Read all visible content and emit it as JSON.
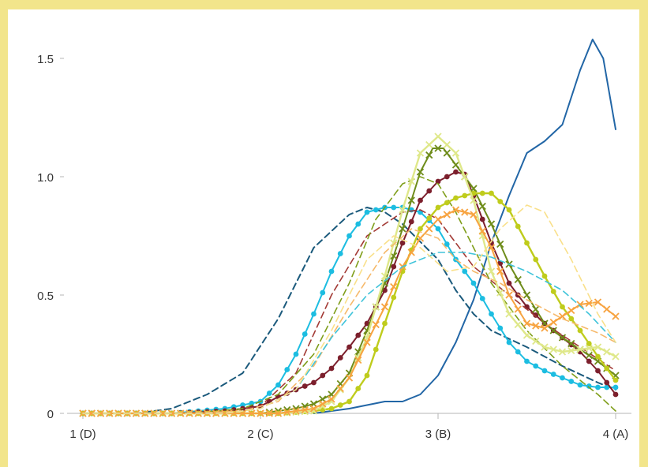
{
  "chart_data": {
    "type": "line",
    "x_ticks": [
      1,
      2,
      3,
      4
    ],
    "x_tick_labels": [
      "1 (D)",
      "2 (C)",
      "3 (B)",
      "4 (A)"
    ],
    "y_ticks": [
      0,
      0.5,
      1.0,
      1.5
    ],
    "y_tick_labels": [
      "0",
      "0.5",
      "1.0",
      "1.5"
    ],
    "xlim": [
      1,
      4
    ],
    "ylim": [
      0,
      1.6
    ],
    "grid": false,
    "legend": "none",
    "series": [
      {
        "color": "#2266a6",
        "style": "solid",
        "marker": "none",
        "width": 2,
        "points": [
          [
            2.3,
            0
          ],
          [
            2.5,
            0.02
          ],
          [
            2.7,
            0.05
          ],
          [
            2.8,
            0.05
          ],
          [
            2.9,
            0.08
          ],
          [
            3.0,
            0.16
          ],
          [
            3.1,
            0.3
          ],
          [
            3.2,
            0.48
          ],
          [
            3.3,
            0.72
          ],
          [
            3.4,
            0.92
          ],
          [
            3.5,
            1.1
          ],
          [
            3.6,
            1.15
          ],
          [
            3.7,
            1.22
          ],
          [
            3.8,
            1.45
          ],
          [
            3.87,
            1.58
          ],
          [
            3.93,
            1.5
          ],
          [
            4.0,
            1.2
          ]
        ]
      },
      {
        "color": "#1b5a7c",
        "style": "dashed",
        "marker": "none",
        "width": 2,
        "points": [
          [
            1,
            0
          ],
          [
            1.3,
            0
          ],
          [
            1.5,
            0.02
          ],
          [
            1.7,
            0.08
          ],
          [
            1.9,
            0.17
          ],
          [
            2.1,
            0.4
          ],
          [
            2.3,
            0.7
          ],
          [
            2.5,
            0.84
          ],
          [
            2.6,
            0.87
          ],
          [
            2.7,
            0.85
          ],
          [
            2.8,
            0.8
          ],
          [
            3.0,
            0.65
          ],
          [
            3.1,
            0.52
          ],
          [
            3.2,
            0.42
          ],
          [
            3.3,
            0.35
          ],
          [
            3.5,
            0.28
          ],
          [
            3.7,
            0.2
          ],
          [
            3.9,
            0.13
          ],
          [
            4.0,
            0.1
          ]
        ]
      },
      {
        "color": "#1cbde1",
        "style": "solid",
        "marker": "dot",
        "width": 2,
        "points": [
          [
            1,
            0
          ],
          [
            1.5,
            0
          ],
          [
            1.8,
            0.02
          ],
          [
            2.0,
            0.05
          ],
          [
            2.1,
            0.12
          ],
          [
            2.2,
            0.25
          ],
          [
            2.3,
            0.42
          ],
          [
            2.4,
            0.6
          ],
          [
            2.5,
            0.75
          ],
          [
            2.6,
            0.85
          ],
          [
            2.7,
            0.87
          ],
          [
            2.8,
            0.87
          ],
          [
            2.9,
            0.85
          ],
          [
            3.0,
            0.78
          ],
          [
            3.1,
            0.65
          ],
          [
            3.2,
            0.55
          ],
          [
            3.3,
            0.42
          ],
          [
            3.4,
            0.3
          ],
          [
            3.5,
            0.22
          ],
          [
            3.6,
            0.18
          ],
          [
            3.7,
            0.15
          ],
          [
            3.8,
            0.12
          ],
          [
            3.9,
            0.11
          ],
          [
            4.0,
            0.11
          ]
        ]
      },
      {
        "color": "#7c1f2c",
        "style": "solid",
        "marker": "dot",
        "width": 2,
        "points": [
          [
            1,
            0
          ],
          [
            1.5,
            0
          ],
          [
            1.8,
            0.01
          ],
          [
            2.0,
            0.03
          ],
          [
            2.1,
            0.07
          ],
          [
            2.2,
            0.1
          ],
          [
            2.3,
            0.13
          ],
          [
            2.4,
            0.19
          ],
          [
            2.5,
            0.28
          ],
          [
            2.6,
            0.38
          ],
          [
            2.7,
            0.52
          ],
          [
            2.8,
            0.72
          ],
          [
            2.9,
            0.9
          ],
          [
            3.0,
            0.98
          ],
          [
            3.1,
            1.02
          ],
          [
            3.15,
            1.01
          ],
          [
            3.2,
            0.92
          ],
          [
            3.3,
            0.72
          ],
          [
            3.4,
            0.55
          ],
          [
            3.5,
            0.45
          ],
          [
            3.6,
            0.38
          ],
          [
            3.7,
            0.32
          ],
          [
            3.8,
            0.26
          ],
          [
            3.9,
            0.18
          ],
          [
            4.0,
            0.08
          ]
        ]
      },
      {
        "color": "#a33a35",
        "style": "dashed",
        "marker": "none",
        "width": 1.6,
        "points": [
          [
            1,
            0
          ],
          [
            1.5,
            0
          ],
          [
            1.8,
            0.01
          ],
          [
            2.0,
            0.03
          ],
          [
            2.2,
            0.17
          ],
          [
            2.4,
            0.5
          ],
          [
            2.6,
            0.75
          ],
          [
            2.8,
            0.85
          ],
          [
            2.9,
            0.86
          ],
          [
            3.0,
            0.82
          ],
          [
            3.1,
            0.72
          ],
          [
            3.2,
            0.62
          ],
          [
            3.4,
            0.5
          ],
          [
            3.6,
            0.38
          ],
          [
            3.8,
            0.28
          ],
          [
            4.0,
            0.18
          ]
        ]
      },
      {
        "color": "#6e8c1a",
        "style": "solid",
        "marker": "cross",
        "width": 2,
        "points": [
          [
            1,
            0
          ],
          [
            2.0,
            0
          ],
          [
            2.2,
            0.02
          ],
          [
            2.3,
            0.04
          ],
          [
            2.4,
            0.08
          ],
          [
            2.5,
            0.17
          ],
          [
            2.6,
            0.35
          ],
          [
            2.7,
            0.55
          ],
          [
            2.8,
            0.78
          ],
          [
            2.9,
            1.02
          ],
          [
            2.97,
            1.12
          ],
          [
            3.03,
            1.12
          ],
          [
            3.1,
            1.05
          ],
          [
            3.2,
            0.95
          ],
          [
            3.3,
            0.8
          ],
          [
            3.4,
            0.63
          ],
          [
            3.5,
            0.5
          ],
          [
            3.6,
            0.38
          ],
          [
            3.7,
            0.32
          ],
          [
            3.8,
            0.27
          ],
          [
            3.9,
            0.22
          ],
          [
            4.0,
            0.16
          ]
        ]
      },
      {
        "color": "#7f9e1a",
        "style": "dashed",
        "marker": "none",
        "width": 1.6,
        "points": [
          [
            1,
            0
          ],
          [
            1.6,
            0
          ],
          [
            1.9,
            0.02
          ],
          [
            2.1,
            0.08
          ],
          [
            2.3,
            0.25
          ],
          [
            2.5,
            0.55
          ],
          [
            2.65,
            0.82
          ],
          [
            2.8,
            0.97
          ],
          [
            2.9,
            1.0
          ],
          [
            3.0,
            0.97
          ],
          [
            3.1,
            0.85
          ],
          [
            3.2,
            0.7
          ],
          [
            3.3,
            0.55
          ],
          [
            3.5,
            0.35
          ],
          [
            3.7,
            0.2
          ],
          [
            3.9,
            0.08
          ],
          [
            4.0,
            0.01
          ]
        ]
      },
      {
        "color": "#bfcc1c",
        "style": "solid",
        "marker": "dot",
        "width": 2.4,
        "points": [
          [
            1,
            0
          ],
          [
            2.1,
            0
          ],
          [
            2.3,
            0.01
          ],
          [
            2.4,
            0.02
          ],
          [
            2.5,
            0.05
          ],
          [
            2.6,
            0.16
          ],
          [
            2.7,
            0.38
          ],
          [
            2.8,
            0.6
          ],
          [
            2.9,
            0.78
          ],
          [
            3.0,
            0.87
          ],
          [
            3.1,
            0.91
          ],
          [
            3.2,
            0.93
          ],
          [
            3.3,
            0.93
          ],
          [
            3.4,
            0.86
          ],
          [
            3.5,
            0.72
          ],
          [
            3.6,
            0.58
          ],
          [
            3.7,
            0.45
          ],
          [
            3.8,
            0.35
          ],
          [
            3.9,
            0.24
          ],
          [
            4.0,
            0.14
          ]
        ]
      },
      {
        "color": "#dfe88a",
        "style": "solid",
        "marker": "cross",
        "width": 2.4,
        "points": [
          [
            1,
            0
          ],
          [
            2.1,
            0
          ],
          [
            2.3,
            0.01
          ],
          [
            2.4,
            0.05
          ],
          [
            2.5,
            0.15
          ],
          [
            2.6,
            0.32
          ],
          [
            2.7,
            0.58
          ],
          [
            2.8,
            0.86
          ],
          [
            2.9,
            1.1
          ],
          [
            3.0,
            1.17
          ],
          [
            3.1,
            1.1
          ],
          [
            3.2,
            0.9
          ],
          [
            3.3,
            0.6
          ],
          [
            3.4,
            0.42
          ],
          [
            3.5,
            0.33
          ],
          [
            3.6,
            0.28
          ],
          [
            3.7,
            0.26
          ],
          [
            3.8,
            0.27
          ],
          [
            3.9,
            0.28
          ],
          [
            4.0,
            0.24
          ]
        ]
      },
      {
        "color": "#f7a340",
        "style": "solid",
        "marker": "cross",
        "width": 2,
        "points": [
          [
            1,
            0
          ],
          [
            2.1,
            0
          ],
          [
            2.3,
            0.02
          ],
          [
            2.4,
            0.06
          ],
          [
            2.5,
            0.15
          ],
          [
            2.6,
            0.3
          ],
          [
            2.7,
            0.45
          ],
          [
            2.8,
            0.62
          ],
          [
            2.9,
            0.74
          ],
          [
            3.0,
            0.82
          ],
          [
            3.1,
            0.86
          ],
          [
            3.2,
            0.84
          ],
          [
            3.3,
            0.7
          ],
          [
            3.4,
            0.5
          ],
          [
            3.5,
            0.38
          ],
          [
            3.6,
            0.36
          ],
          [
            3.7,
            0.41
          ],
          [
            3.8,
            0.46
          ],
          [
            3.9,
            0.47
          ],
          [
            4.0,
            0.41
          ]
        ]
      },
      {
        "color": "#f6b96b",
        "style": "dashed",
        "marker": "none",
        "width": 1.6,
        "points": [
          [
            1,
            0
          ],
          [
            1.6,
            0
          ],
          [
            1.9,
            0.01
          ],
          [
            2.1,
            0.05
          ],
          [
            2.3,
            0.2
          ],
          [
            2.5,
            0.45
          ],
          [
            2.7,
            0.68
          ],
          [
            2.85,
            0.78
          ],
          [
            3.0,
            0.74
          ],
          [
            3.1,
            0.65
          ],
          [
            3.2,
            0.6
          ],
          [
            3.35,
            0.55
          ],
          [
            3.5,
            0.48
          ],
          [
            3.7,
            0.4
          ],
          [
            3.9,
            0.34
          ],
          [
            4.0,
            0.3
          ]
        ]
      },
      {
        "color": "#40c4da",
        "style": "dashed",
        "marker": "none",
        "width": 1.6,
        "points": [
          [
            1,
            0
          ],
          [
            1.8,
            0
          ],
          [
            2.0,
            0.02
          ],
          [
            2.2,
            0.1
          ],
          [
            2.4,
            0.32
          ],
          [
            2.6,
            0.5
          ],
          [
            2.8,
            0.62
          ],
          [
            3.0,
            0.68
          ],
          [
            3.15,
            0.68
          ],
          [
            3.3,
            0.66
          ],
          [
            3.5,
            0.6
          ],
          [
            3.7,
            0.52
          ],
          [
            3.85,
            0.42
          ],
          [
            4.0,
            0.3
          ]
        ]
      },
      {
        "color": "#f9e08a",
        "style": "dashed",
        "marker": "none",
        "width": 1.6,
        "points": [
          [
            1,
            0
          ],
          [
            1.8,
            0
          ],
          [
            2.0,
            0.02
          ],
          [
            2.2,
            0.1
          ],
          [
            2.4,
            0.35
          ],
          [
            2.6,
            0.65
          ],
          [
            2.75,
            0.75
          ],
          [
            2.9,
            0.7
          ],
          [
            3.05,
            0.6
          ],
          [
            3.2,
            0.62
          ],
          [
            3.35,
            0.78
          ],
          [
            3.5,
            0.88
          ],
          [
            3.6,
            0.85
          ],
          [
            3.75,
            0.65
          ],
          [
            3.9,
            0.42
          ],
          [
            4.0,
            0.3
          ]
        ]
      }
    ]
  }
}
